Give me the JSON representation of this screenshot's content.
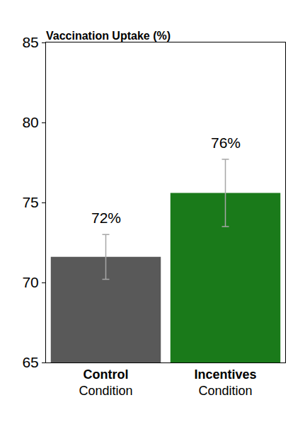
{
  "chart_data": {
    "type": "bar",
    "title": "Vaccination Uptake (%)",
    "categories": [
      "Control Condition",
      "Incentives Condition"
    ],
    "values": [
      71.6,
      75.6
    ],
    "value_labels": [
      "72%",
      "76%"
    ],
    "errors": [
      1.4,
      2.1
    ],
    "colors": [
      "#595959",
      "#1a7a1a"
    ],
    "ylim": [
      65,
      85
    ],
    "yticks": [
      65,
      70,
      75,
      80,
      85
    ],
    "grid": false,
    "data_labels": true
  }
}
